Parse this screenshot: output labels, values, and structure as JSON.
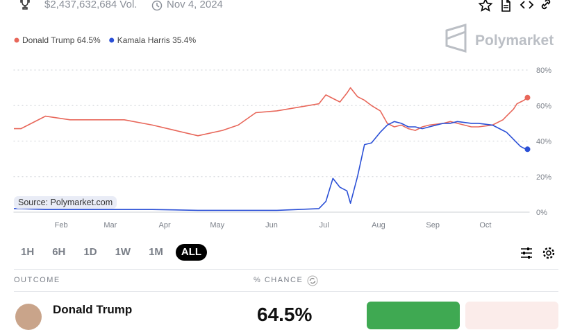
{
  "header": {
    "volume": "$2,437,632,684 Vol.",
    "date": "Nov 4, 2024"
  },
  "brand": "Polymarket",
  "source": "Source: Polymarket.com",
  "time_ranges": [
    "1H",
    "6H",
    "1D",
    "1W",
    "1M",
    "ALL"
  ],
  "active_range": "ALL",
  "table_header": {
    "outcome": "OUTCOME",
    "chance": "% CHANCE"
  },
  "outcomes": [
    {
      "name": "Donald Trump",
      "chance": "64.5%"
    }
  ],
  "chart_data": {
    "type": "line",
    "x": [
      4,
      8,
      22,
      36,
      67,
      83,
      109,
      123,
      132,
      142,
      154,
      178,
      182,
      186,
      190,
      194,
      196,
      200,
      204,
      208,
      213,
      217,
      221,
      225,
      229,
      233,
      237,
      241,
      249,
      253,
      257,
      265,
      269,
      277,
      283,
      285,
      289,
      291,
      293,
      295,
      297
    ],
    "series": [
      {
        "name": "Donald Trump 64.5%",
        "color": "#e8675a",
        "values": [
          47,
          47,
          54,
          52,
          52,
          49,
          43,
          46,
          49,
          56,
          57,
          61,
          66,
          64,
          62,
          67,
          70,
          65,
          63,
          60,
          57,
          50,
          48,
          49,
          47,
          46,
          48,
          49,
          50,
          51,
          50,
          48,
          48,
          49,
          52,
          54,
          58,
          61,
          62,
          63,
          64.5
        ]
      },
      {
        "name": "Kamala Harris 35.4%",
        "color": "#2a4fd6",
        "values": [
          2,
          2,
          1.5,
          1.5,
          1.5,
          1.5,
          1,
          1,
          1,
          1,
          1,
          2,
          6,
          19,
          14,
          12,
          5,
          20,
          38,
          39,
          45,
          49,
          51,
          50,
          48,
          48,
          47,
          48,
          50,
          50,
          51,
          50,
          50,
          49,
          46,
          45,
          41,
          39,
          37,
          36,
          35.4
        ]
      }
    ],
    "xlim": [
      4,
      298
    ],
    "xticks": [
      {
        "value": 31,
        "label": "Feb"
      },
      {
        "value": 59,
        "label": "Mar"
      },
      {
        "value": 90,
        "label": "Apr"
      },
      {
        "value": 120,
        "label": "May"
      },
      {
        "value": 151,
        "label": "Jun"
      },
      {
        "value": 181,
        "label": "Jul"
      },
      {
        "value": 212,
        "label": "Aug"
      },
      {
        "value": 243,
        "label": "Sep"
      },
      {
        "value": 273,
        "label": "Oct"
      }
    ],
    "ylim": [
      0,
      80
    ],
    "yticks": [
      {
        "value": 0,
        "label": "0%"
      },
      {
        "value": 20,
        "label": "20%"
      },
      {
        "value": 40,
        "label": "40%"
      },
      {
        "value": 60,
        "label": "60%"
      },
      {
        "value": 80,
        "label": "80%"
      }
    ],
    "grid": true
  }
}
